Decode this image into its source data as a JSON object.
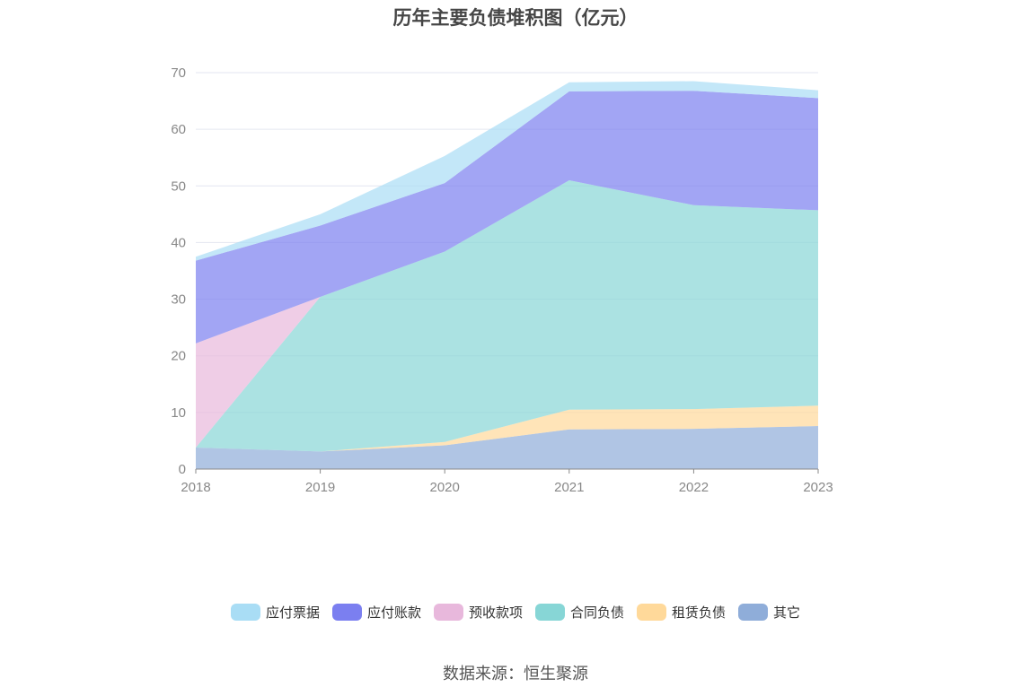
{
  "chart_data": {
    "type": "area",
    "stacked": true,
    "title": "历年主要负债堆积图（亿元）",
    "x": [
      "2018",
      "2019",
      "2020",
      "2021",
      "2022",
      "2023"
    ],
    "ylim": [
      0,
      70
    ],
    "yticks": [
      0,
      10,
      20,
      30,
      40,
      50,
      60,
      70
    ],
    "grid": true,
    "legend_position": "bottom",
    "series": [
      {
        "name": "其它",
        "color": "#8fadd9",
        "values": [
          3.8,
          3.1,
          4.2,
          7.0,
          7.1,
          7.6
        ]
      },
      {
        "name": "租赁负债",
        "color": "#ffd99a",
        "values": [
          0.0,
          0.0,
          0.6,
          3.5,
          3.5,
          3.6
        ]
      },
      {
        "name": "合同负债",
        "color": "#87d6d6",
        "values": [
          0.0,
          27.3,
          33.6,
          40.5,
          36.0,
          34.5
        ]
      },
      {
        "name": "预收款项",
        "color": "#e8b8dc",
        "values": [
          18.4,
          0.0,
          0.0,
          0.0,
          0.0,
          0.0
        ]
      },
      {
        "name": "应付账款",
        "color": "#7b7ff0",
        "values": [
          14.6,
          12.6,
          12.1,
          15.7,
          20.2,
          19.8
        ]
      },
      {
        "name": "应付票据",
        "color": "#a9ddf5",
        "values": [
          0.7,
          2.0,
          4.8,
          1.6,
          1.7,
          1.4
        ]
      }
    ]
  },
  "legend": [
    {
      "label": "应付票据",
      "color": "#a9ddf5"
    },
    {
      "label": "应付账款",
      "color": "#7b7ff0"
    },
    {
      "label": "预收款项",
      "color": "#e8b8dc"
    },
    {
      "label": "合同负债",
      "color": "#87d6d6"
    },
    {
      "label": "租赁负债",
      "color": "#ffd99a"
    },
    {
      "label": "其它",
      "color": "#8fadd9"
    }
  ],
  "source_text": "数据来源：恒生聚源"
}
